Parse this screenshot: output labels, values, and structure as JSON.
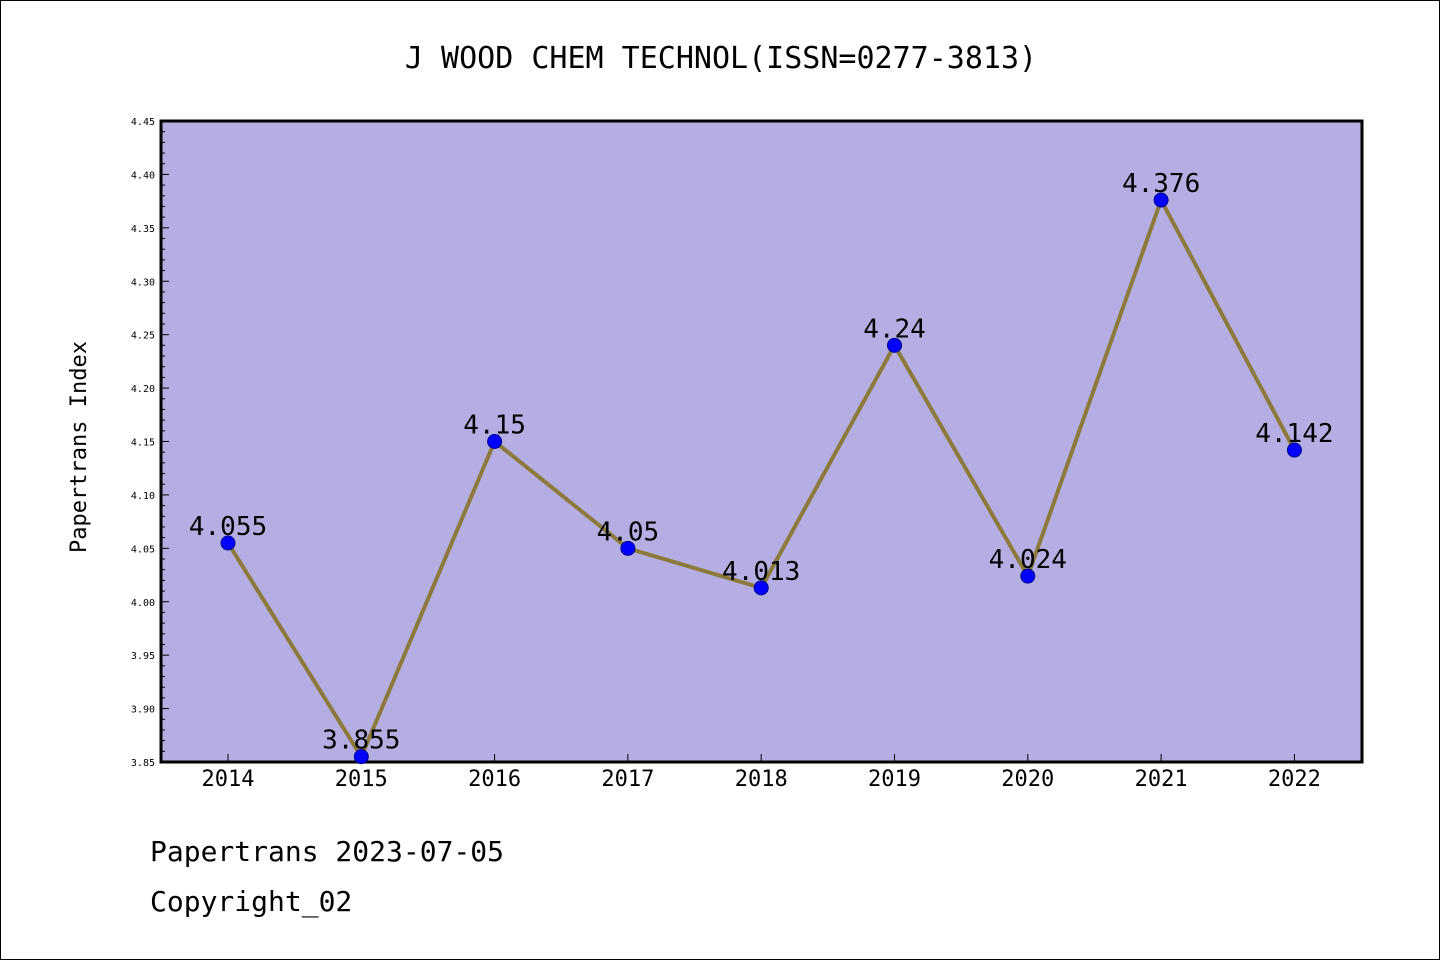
{
  "chart_data": {
    "type": "line",
    "title": "J WOOD CHEM TECHNOL(ISSN=0277-3813)",
    "xlabel": "",
    "ylabel": "Papertrans Index",
    "categories": [
      "2014",
      "2015",
      "2016",
      "2017",
      "2018",
      "2019",
      "2020",
      "2021",
      "2022"
    ],
    "values": [
      4.055,
      3.855,
      4.15,
      4.05,
      4.013,
      4.24,
      4.024,
      4.376,
      4.142
    ],
    "data_labels": [
      "4.055",
      "3.855",
      "4.15",
      "4.05",
      "4.013",
      "4.24",
      "4.024",
      "4.376",
      "4.142"
    ],
    "ylim": [
      3.85,
      4.45
    ],
    "yticks": [
      "3.85",
      "3.90",
      "3.95",
      "4.00",
      "4.05",
      "4.10",
      "4.15",
      "4.20",
      "4.25",
      "4.30",
      "4.35",
      "4.40",
      "4.45"
    ],
    "grid": false,
    "legend": "none",
    "colors": {
      "plot_background": "#b5aee2",
      "line": "#8b7a3c",
      "marker": "#0000ff",
      "marker_edge": "#00008b"
    }
  },
  "footer": {
    "line1": "Papertrans 2023-07-05",
    "line2": "Copyright_02"
  }
}
